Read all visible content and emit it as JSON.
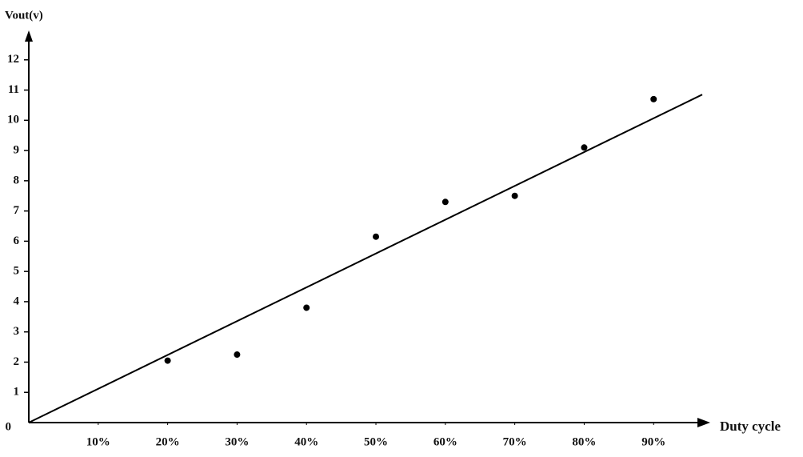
{
  "chart_data": {
    "type": "scatter",
    "x_label": "Duty cycle",
    "y_label": "Vout(v)",
    "x": [
      20,
      30,
      40,
      50,
      60,
      70,
      80,
      90
    ],
    "values": [
      2.05,
      2.25,
      3.8,
      6.15,
      7.3,
      7.5,
      9.1,
      10.7
    ],
    "color": "#000000",
    "trend_line": {
      "x": [
        0,
        97
      ],
      "y": [
        0,
        10.85
      ]
    },
    "xlim": [
      0,
      97
    ],
    "ylim": [
      0,
      13
    ],
    "xticks": [
      {
        "value": 10,
        "label": "10%"
      },
      {
        "value": 20,
        "label": "20%"
      },
      {
        "value": 30,
        "label": "30%"
      },
      {
        "value": 40,
        "label": "40%"
      },
      {
        "value": 50,
        "label": "50%"
      },
      {
        "value": 60,
        "label": "60%"
      },
      {
        "value": 70,
        "label": "70%"
      },
      {
        "value": 80,
        "label": "80%"
      },
      {
        "value": 90,
        "label": "90%"
      }
    ],
    "yticks": [
      0,
      1,
      2,
      3,
      4,
      5,
      6,
      7,
      8,
      9,
      10,
      11,
      12
    ]
  }
}
